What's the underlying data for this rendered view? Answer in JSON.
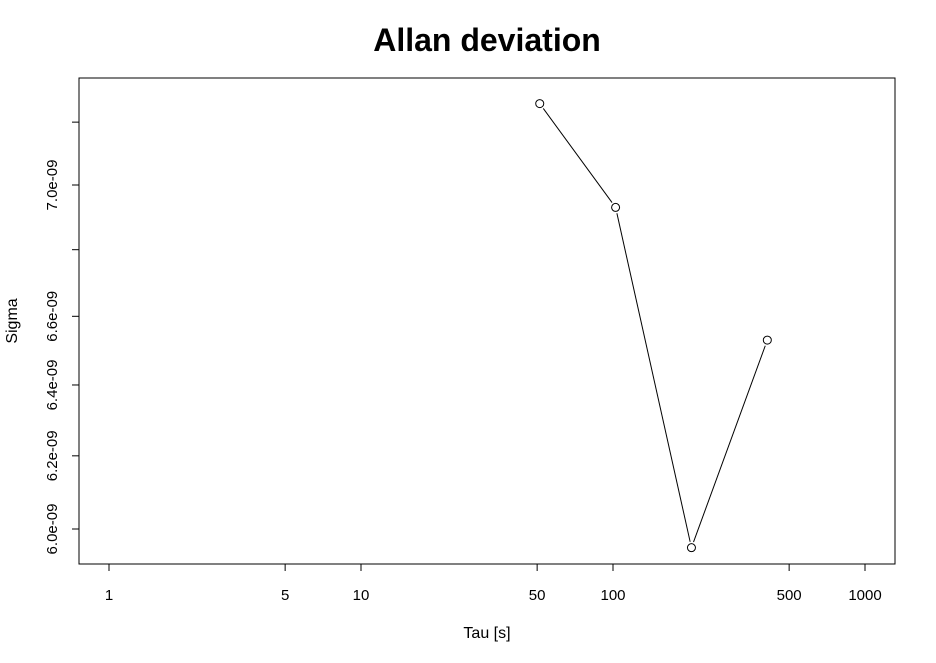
{
  "chart_data": {
    "type": "line",
    "title": "Allan deviation",
    "xlabel": "Tau [s]",
    "ylabel": "Sigma",
    "x_scale": "log",
    "y_scale": "log",
    "xlim": [
      1,
      1000
    ],
    "x_ticks": [
      {
        "value": 1,
        "label": "1"
      },
      {
        "value": 5,
        "label": "5"
      },
      {
        "value": 10,
        "label": "10"
      },
      {
        "value": 50,
        "label": "50"
      },
      {
        "value": 100,
        "label": "100"
      },
      {
        "value": 500,
        "label": "500"
      },
      {
        "value": 1000,
        "label": "1000"
      }
    ],
    "y_ticks": [
      {
        "value": 6e-09,
        "label": "6.0e-09"
      },
      {
        "value": 6.2e-09,
        "label": "6.2e-09"
      },
      {
        "value": 6.4e-09,
        "label": "6.4e-09"
      },
      {
        "value": 6.6e-09,
        "label": "6.6e-09"
      },
      {
        "value": 6.8e-09,
        "label": ""
      },
      {
        "value": 7e-09,
        "label": "7.0e-09"
      },
      {
        "value": 7.2e-09,
        "label": ""
      }
    ],
    "series": [
      {
        "x": [
          51.2,
          102.4,
          204.8,
          409.6
        ],
        "y": [
          7.26e-09,
          6.93e-09,
          5.95e-09,
          6.53e-09
        ]
      }
    ],
    "grid": false,
    "point_marker": "open-circle",
    "line_color": "#000000"
  }
}
